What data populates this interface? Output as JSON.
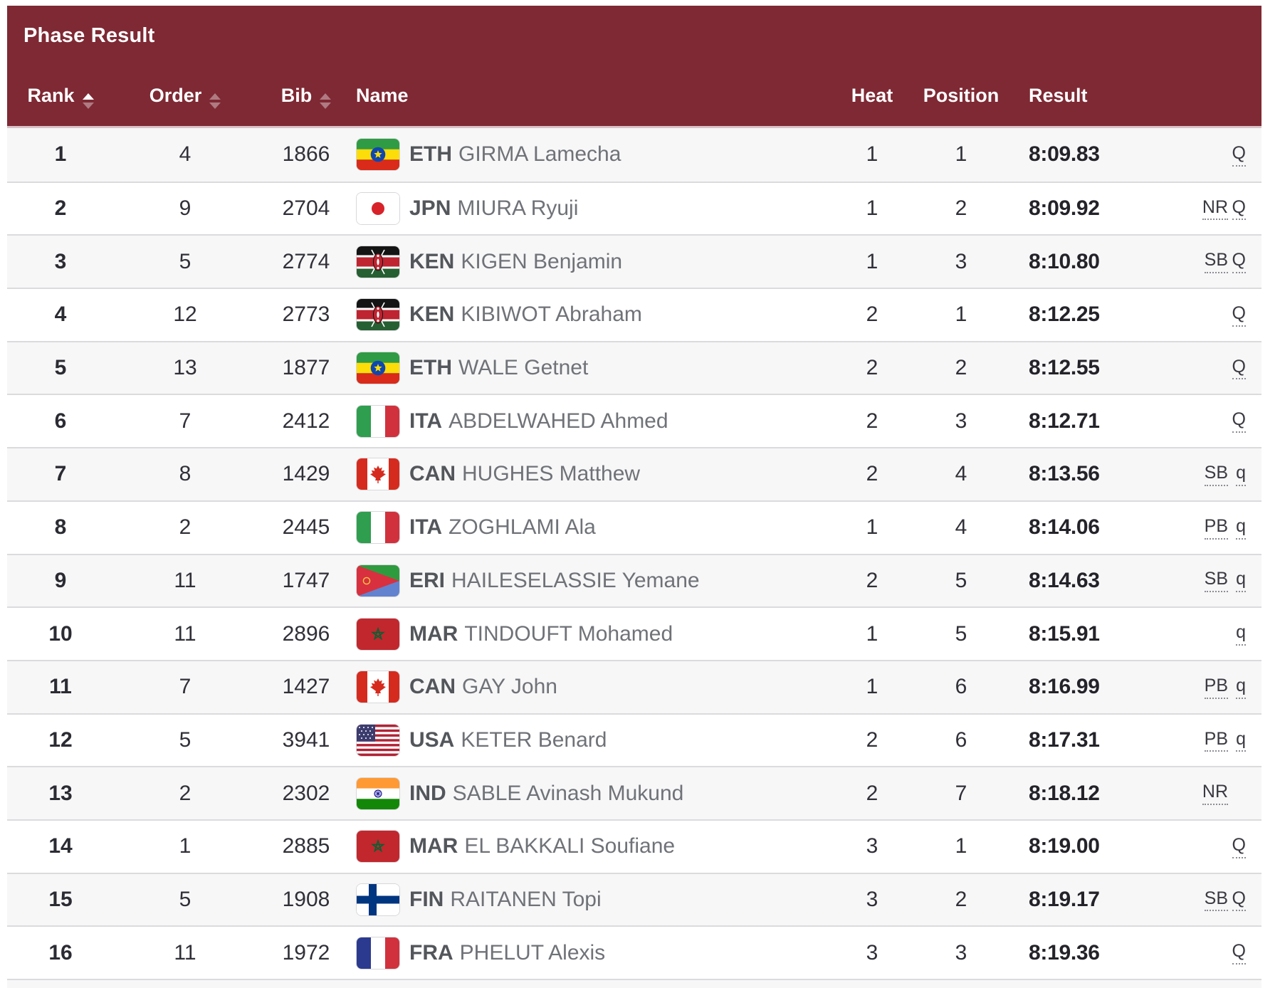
{
  "title": "Phase Result",
  "columns": {
    "rank": "Rank",
    "order": "Order",
    "bib": "Bib",
    "name": "Name",
    "heat": "Heat",
    "position": "Position",
    "result": "Result"
  },
  "sort": {
    "rank": "asc",
    "order": "none",
    "bib": "none"
  },
  "colors": {
    "header_bg": "#7e2934",
    "row_alt_bg": "#f7f7f8",
    "active_sort_arrow": "#ffffff"
  },
  "rows": [
    {
      "rank": "1",
      "order": "4",
      "bib": "1866",
      "flag": "eth-flag",
      "noc": "ETH",
      "athlete": "GIRMA Lamecha",
      "heat": "1",
      "position": "1",
      "result": "8:09.83",
      "record": "",
      "qualification": "Q"
    },
    {
      "rank": "2",
      "order": "9",
      "bib": "2704",
      "flag": "jpn-flag",
      "noc": "JPN",
      "athlete": "MIURA Ryuji",
      "heat": "1",
      "position": "2",
      "result": "8:09.92",
      "record": "NR",
      "qualification": "Q"
    },
    {
      "rank": "3",
      "order": "5",
      "bib": "2774",
      "flag": "ken-flag",
      "noc": "KEN",
      "athlete": "KIGEN Benjamin",
      "heat": "1",
      "position": "3",
      "result": "8:10.80",
      "record": "SB",
      "qualification": "Q"
    },
    {
      "rank": "4",
      "order": "12",
      "bib": "2773",
      "flag": "ken-flag",
      "noc": "KEN",
      "athlete": "KIBIWOT Abraham",
      "heat": "2",
      "position": "1",
      "result": "8:12.25",
      "record": "",
      "qualification": "Q"
    },
    {
      "rank": "5",
      "order": "13",
      "bib": "1877",
      "flag": "eth-flag",
      "noc": "ETH",
      "athlete": "WALE Getnet",
      "heat": "2",
      "position": "2",
      "result": "8:12.55",
      "record": "",
      "qualification": "Q"
    },
    {
      "rank": "6",
      "order": "7",
      "bib": "2412",
      "flag": "ita-flag",
      "noc": "ITA",
      "athlete": "ABDELWAHED Ahmed",
      "heat": "2",
      "position": "3",
      "result": "8:12.71",
      "record": "",
      "qualification": "Q"
    },
    {
      "rank": "7",
      "order": "8",
      "bib": "1429",
      "flag": "can-flag",
      "noc": "CAN",
      "athlete": "HUGHES Matthew",
      "heat": "2",
      "position": "4",
      "result": "8:13.56",
      "record": "SB",
      "qualification": "q"
    },
    {
      "rank": "8",
      "order": "2",
      "bib": "2445",
      "flag": "ita-flag",
      "noc": "ITA",
      "athlete": "ZOGHLAMI Ala",
      "heat": "1",
      "position": "4",
      "result": "8:14.06",
      "record": "PB",
      "qualification": "q"
    },
    {
      "rank": "9",
      "order": "11",
      "bib": "1747",
      "flag": "eri-flag",
      "noc": "ERI",
      "athlete": "HAILESELASSIE Yemane",
      "heat": "2",
      "position": "5",
      "result": "8:14.63",
      "record": "SB",
      "qualification": "q"
    },
    {
      "rank": "10",
      "order": "11",
      "bib": "2896",
      "flag": "mar-flag",
      "noc": "MAR",
      "athlete": "TINDOUFT Mohamed",
      "heat": "1",
      "position": "5",
      "result": "8:15.91",
      "record": "",
      "qualification": "q"
    },
    {
      "rank": "11",
      "order": "7",
      "bib": "1427",
      "flag": "can-flag",
      "noc": "CAN",
      "athlete": "GAY John",
      "heat": "1",
      "position": "6",
      "result": "8:16.99",
      "record": "PB",
      "qualification": "q"
    },
    {
      "rank": "12",
      "order": "5",
      "bib": "3941",
      "flag": "usa-flag",
      "noc": "USA",
      "athlete": "KETER Benard",
      "heat": "2",
      "position": "6",
      "result": "8:17.31",
      "record": "PB",
      "qualification": "q"
    },
    {
      "rank": "13",
      "order": "2",
      "bib": "2302",
      "flag": "ind-flag",
      "noc": "IND",
      "athlete": "SABLE Avinash Mukund",
      "heat": "2",
      "position": "7",
      "result": "8:18.12",
      "record": "NR",
      "qualification": ""
    },
    {
      "rank": "14",
      "order": "1",
      "bib": "2885",
      "flag": "mar-flag",
      "noc": "MAR",
      "athlete": "EL BAKKALI Soufiane",
      "heat": "3",
      "position": "1",
      "result": "8:19.00",
      "record": "",
      "qualification": "Q"
    },
    {
      "rank": "15",
      "order": "5",
      "bib": "1908",
      "flag": "fin-flag",
      "noc": "FIN",
      "athlete": "RAITANEN Topi",
      "heat": "3",
      "position": "2",
      "result": "8:19.17",
      "record": "SB",
      "qualification": "Q"
    },
    {
      "rank": "16",
      "order": "11",
      "bib": "1972",
      "flag": "fra-flag",
      "noc": "FRA",
      "athlete": "PHELUT Alexis",
      "heat": "3",
      "position": "3",
      "result": "8:19.36",
      "record": "",
      "qualification": "Q"
    }
  ]
}
